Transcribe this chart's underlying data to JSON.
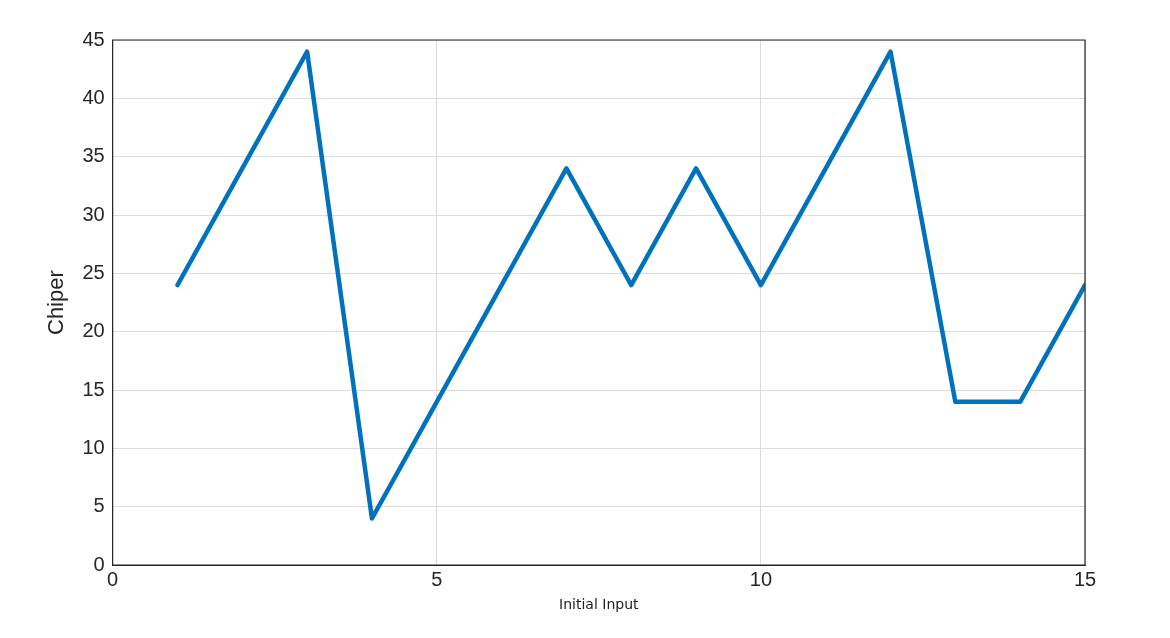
{
  "chart_data": {
    "type": "line",
    "xlabel": "Initial Input",
    "ylabel": "Chiper",
    "x": [
      1,
      2,
      3,
      4,
      5,
      6,
      7,
      8,
      9,
      10,
      11,
      12,
      13,
      14,
      15
    ],
    "series": [
      {
        "color": "#0072bd",
        "values": [
          24,
          34,
          44,
          4,
          14,
          24,
          34,
          24,
          34,
          24,
          34,
          44,
          14,
          14,
          24
        ]
      }
    ],
    "xlim": [
      0,
      15
    ],
    "xticks": [
      0,
      5,
      10,
      15
    ],
    "ylim": [
      0,
      45
    ],
    "yticks": [
      0,
      5,
      10,
      15,
      20,
      25,
      30,
      35,
      40,
      45
    ],
    "grid": true,
    "legend": false,
    "marker": "none",
    "line_style": "solid"
  }
}
